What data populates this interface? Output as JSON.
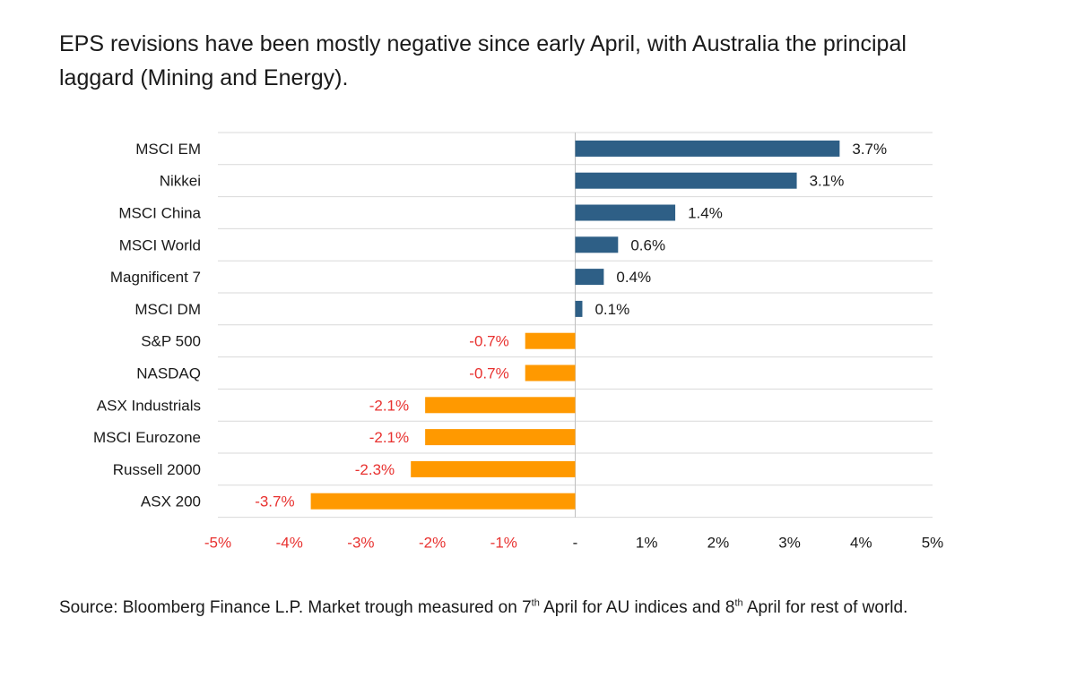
{
  "title": "EPS revisions have been mostly negative since early April, with Australia the principal laggard (Mining and Energy).",
  "source": {
    "part1": "Source: Bloomberg Finance L.P. Market trough measured on 7",
    "sup1": "th",
    "part2": " April for AU indices and 8",
    "sup2": "th",
    "part3": " April for rest of world."
  },
  "colors": {
    "positive": "#2e5f86",
    "negative": "#ff9900",
    "negative_text": "#e8312f",
    "text": "#1a1a1a",
    "grid": "#d9d9d9",
    "axis": "#bfbfbf"
  },
  "chart_data": {
    "type": "bar",
    "orientation": "horizontal",
    "categories": [
      "MSCI EM",
      "Nikkei",
      "MSCI China",
      "MSCI World",
      "Magnificent 7",
      "MSCI DM",
      "S&P 500",
      "NASDAQ",
      "ASX Industrials",
      "MSCI Eurozone",
      "Russell 2000",
      "ASX 200"
    ],
    "values": [
      3.7,
      3.1,
      1.4,
      0.6,
      0.4,
      0.1,
      -0.7,
      -0.7,
      -2.1,
      -2.1,
      -2.3,
      -3.7
    ],
    "data_labels": [
      "3.7%",
      "3.1%",
      "1.4%",
      "0.6%",
      "0.4%",
      "0.1%",
      "-0.7%",
      "-0.7%",
      "-2.1%",
      "-2.1%",
      "-2.3%",
      "-3.7%"
    ],
    "xlim": [
      -5,
      5
    ],
    "xticks": [
      -5,
      -4,
      -3,
      -2,
      -1,
      0,
      1,
      2,
      3,
      4,
      5
    ],
    "xtick_labels": [
      "-5%",
      "-4%",
      "-3%",
      "-2%",
      "-1%",
      "-",
      "1%",
      "2%",
      "3%",
      "4%",
      "5%"
    ],
    "title": "",
    "xlabel": "",
    "ylabel": "",
    "grid": true,
    "legend": "none"
  }
}
